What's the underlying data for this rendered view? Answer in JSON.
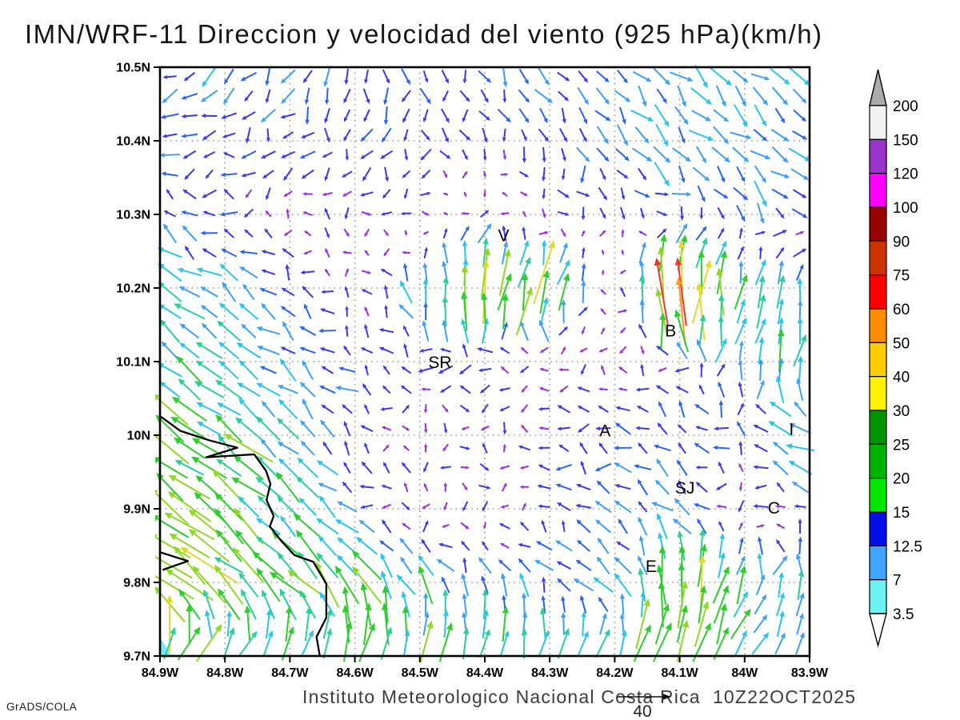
{
  "title": "IMN/WRF-11 Direccion y velocidad del viento (925 hPa)(km/h)",
  "caption": "Instituto Meteorologico Nacional Costa Rica  10Z22OCT2025",
  "credit": "GrADS/COLA",
  "chart_data": {
    "type": "vector-field-map",
    "model": "IMN/WRF-11",
    "field": "Direccion y velocidad del viento",
    "level_hpa": 925,
    "units": "km/h",
    "valid_time": "10Z22OCT2025",
    "lon_range_w": [
      84.9,
      83.9
    ],
    "lat_range_n": [
      10.5,
      9.7
    ],
    "grid_deg": 0.1,
    "lon_tick_labels": [
      "84.9W",
      "84.8W",
      "84.7W",
      "84.6W",
      "84.5W",
      "84.4W",
      "84.3W",
      "84.2W",
      "84.1W",
      "84W",
      "83.9W"
    ],
    "lat_tick_labels": [
      "10.5N",
      "10.4N",
      "10.3N",
      "10.2N",
      "10.1N",
      "10N",
      "9.9N",
      "9.8N",
      "9.7N"
    ],
    "grid_on": true,
    "reference_arrow": {
      "speed": 40,
      "label": "40"
    },
    "colorbar": {
      "position": "right",
      "boundary_labels": [
        "200",
        "150",
        "120",
        "100",
        "90",
        "75",
        "60",
        "50",
        "40",
        "30",
        "25",
        "20",
        "15",
        "12.5",
        "7",
        "3.5"
      ],
      "segment_colors_top_to_bottom": [
        "#f2f2f2",
        "#9933cc",
        "#ff00ff",
        "#9b0000",
        "#cc3300",
        "#ff0000",
        "#ff8c00",
        "#ffcc00",
        "#fff200",
        "#009300",
        "#00b300",
        "#00e600",
        "#0010e6",
        "#41a3fb",
        "#6cf2f2"
      ],
      "over_cap_color": "#ababab",
      "under_cap_color": "#ffffff"
    },
    "vector_palette": {
      "thresholds_kmh": [
        7,
        12.5,
        15,
        20,
        25,
        30,
        40,
        50,
        60,
        75,
        90
      ],
      "colors": [
        "#9a30d8",
        "#3a3ae8",
        "#2b62ee",
        "#3f9ff2",
        "#29c6e6",
        "#2bcf99",
        "#2fcc2f",
        "#90d824",
        "#e6d72b",
        "#ff9621",
        "#ee3629",
        "#e82c9c"
      ]
    },
    "stations": [
      {
        "label": "V",
        "lon_w": 84.371,
        "lat_n": 10.271
      },
      {
        "label": "B",
        "lon_w": 84.114,
        "lat_n": 10.142
      },
      {
        "label": "SR",
        "lon_w": 84.469,
        "lat_n": 10.099
      },
      {
        "label": "A",
        "lon_w": 84.215,
        "lat_n": 10.006
      },
      {
        "label": "I",
        "lon_w": 83.928,
        "lat_n": 10.008
      },
      {
        "label": "SJ",
        "lon_w": 84.092,
        "lat_n": 9.928
      },
      {
        "label": "C",
        "lon_w": 83.955,
        "lat_n": 9.901
      },
      {
        "label": "E",
        "lon_w": 84.144,
        "lat_n": 9.822
      }
    ],
    "coastline_lonlat": [
      [
        [
          84.9,
          10.026
        ],
        [
          84.869,
          10.006
        ],
        [
          84.824,
          9.993
        ],
        [
          84.781,
          9.983
        ],
        [
          84.829,
          9.97
        ],
        [
          84.755,
          9.974
        ],
        [
          84.737,
          9.952
        ],
        [
          84.73,
          9.934
        ],
        [
          84.736,
          9.912
        ],
        [
          84.725,
          9.89
        ],
        [
          84.731,
          9.876
        ],
        [
          84.713,
          9.856
        ],
        [
          84.693,
          9.837
        ],
        [
          84.664,
          9.828
        ],
        [
          84.644,
          9.798
        ],
        [
          84.644,
          9.752
        ],
        [
          84.659,
          9.726
        ],
        [
          84.654,
          9.7
        ]
      ],
      [
        [
          84.9,
          9.841
        ],
        [
          84.857,
          9.829
        ],
        [
          84.896,
          9.817
        ]
      ]
    ],
    "sea_patch_lonlat": [
      [
        84.9,
        9.726
      ],
      [
        84.883,
        9.7
      ],
      [
        84.9,
        9.7
      ]
    ],
    "sea_patch_color": "#76e9f5",
    "wind_grid": {
      "comment": "coarse u,v (km/h, east/north positive) on 0.1 deg grid; rows lat 10.5N->9.7N, cols lon 84.9W->83.9W",
      "u": [
        [
          -12,
          -10,
          -4,
          0,
          2,
          5,
          8,
          10,
          12,
          14,
          15
        ],
        [
          -14,
          -12,
          -6,
          -2,
          0,
          4,
          7,
          10,
          12,
          14,
          15
        ],
        [
          -10,
          -8,
          -6,
          -5,
          -3,
          2,
          3,
          5,
          6,
          8,
          10
        ],
        [
          -18,
          -16,
          -10,
          -4,
          -2,
          5,
          10,
          -6,
          5,
          3,
          2
        ],
        [
          -20,
          -18,
          -12,
          -8,
          -10,
          -10,
          -6,
          -5,
          -8,
          6,
          8
        ],
        [
          -25,
          -22,
          -18,
          -8,
          -4,
          -5,
          -10,
          -12,
          -10,
          -8,
          -28
        ],
        [
          -30,
          -28,
          -20,
          -10,
          -6,
          -5,
          -8,
          -10,
          -12,
          -6,
          -8
        ],
        [
          -32,
          -30,
          -25,
          -20,
          -10,
          -5,
          -8,
          -15,
          3,
          10,
          5
        ],
        [
          20,
          26,
          22,
          15,
          10,
          8,
          10,
          12,
          15,
          12,
          10
        ]
      ],
      "v": [
        [
          -4,
          -8,
          -12,
          -14,
          -12,
          -12,
          -12,
          -12,
          -12,
          -12,
          -10
        ],
        [
          -2,
          -5,
          -10,
          -12,
          -10,
          -10,
          -11,
          -12,
          -12,
          -11,
          -9
        ],
        [
          6,
          2,
          -3,
          -5,
          -5,
          8,
          -6,
          -8,
          -8,
          -8,
          -6
        ],
        [
          14,
          12,
          8,
          4,
          20,
          45,
          40,
          -5,
          85,
          25,
          20
        ],
        [
          16,
          14,
          10,
          6,
          2,
          0,
          -3,
          -4,
          3,
          18,
          30
        ],
        [
          20,
          18,
          15,
          5,
          -3,
          -3,
          2,
          3,
          6,
          8,
          8
        ],
        [
          25,
          22,
          18,
          8,
          -4,
          -5,
          5,
          8,
          10,
          -4,
          6
        ],
        [
          28,
          26,
          22,
          32,
          15,
          18,
          12,
          10,
          45,
          25,
          18
        ],
        [
          25,
          28,
          28,
          30,
          32,
          30,
          28,
          25,
          28,
          22,
          18
        ]
      ]
    }
  }
}
